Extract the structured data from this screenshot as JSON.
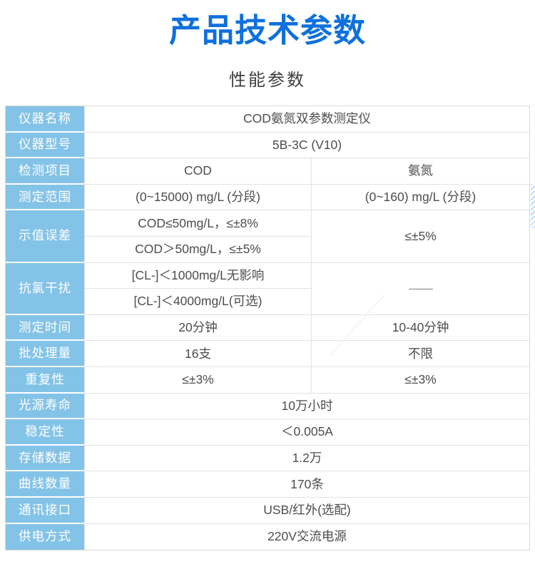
{
  "page": {
    "title": "产品技术参数",
    "subtitle": "性能参数"
  },
  "colors": {
    "title_blue": "#0e70dd",
    "label_bg_blue": "#84c3e8",
    "value_text": "#4d4d4d",
    "border_gray": "#d9d9d9"
  },
  "table": {
    "column_headers_note": "left label column, COD column, ammonia column",
    "rows": [
      {
        "label": "仪器名称",
        "value": "COD氨氮双参数测定仪"
      },
      {
        "label": "仪器型号",
        "value": "5B-3C (V10)"
      },
      {
        "label": "检测项目",
        "cod": "COD",
        "nh3": "氨氮"
      },
      {
        "label": "测定范围",
        "cod": "(0~15000) mg/L (分段)",
        "nh3": "(0~160) mg/L (分段)"
      },
      {
        "label": "示值误差",
        "cod_a": "COD≤50mg/L，≤±8%",
        "cod_b": "COD＞50mg/L，≤±5%",
        "nh3": "≤±5%"
      },
      {
        "label": "抗氯干扰",
        "cod_a": "[CL-]＜1000mg/L无影响",
        "cod_b": "[CL-]＜4000mg/L(可选)",
        "nh3": "——"
      },
      {
        "label": "测定时间",
        "cod": "20分钟",
        "nh3": "10-40分钟"
      },
      {
        "label": "批处理量",
        "cod": "16支",
        "nh3": "不限"
      },
      {
        "label": "重复性",
        "cod": "≤±3%",
        "nh3": "≤±3%"
      },
      {
        "label": "光源寿命",
        "value": "10万小时"
      },
      {
        "label": "稳定性",
        "value": "＜0.005A"
      },
      {
        "label": "存储数据",
        "value": "1.2万"
      },
      {
        "label": "曲线数量",
        "value": "170条"
      },
      {
        "label": "通讯接口",
        "value": "USB/红外(选配)"
      },
      {
        "label": "供电方式",
        "value": "220V交流电源"
      }
    ]
  }
}
